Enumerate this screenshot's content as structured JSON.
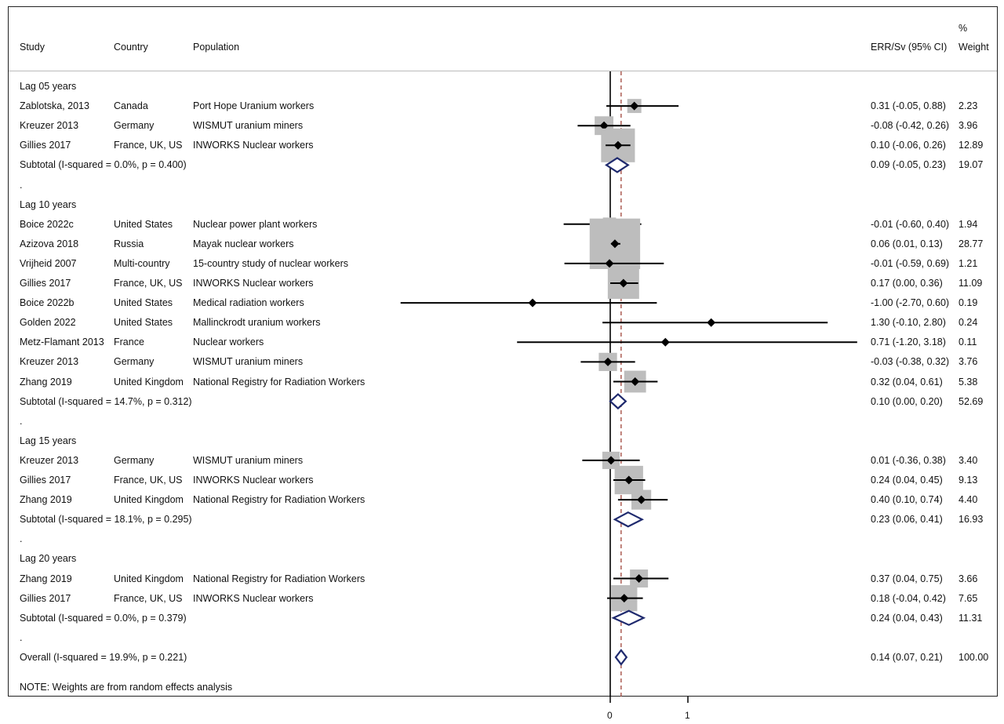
{
  "header": {
    "study": "Study",
    "country": "Country",
    "population": "Population",
    "estimate": "ERR/Sv (95% CI)",
    "weight_pct": "%",
    "weight": "Weight"
  },
  "note": "NOTE: Weights are from random effects analysis",
  "chart_data": {
    "type": "forest",
    "x_axis": {
      "ticks": [
        0,
        1
      ],
      "reference_line": 0,
      "dashed_line_at_overall": 0.14
    },
    "rows": [
      {
        "kind": "group",
        "label": "Lag 05 years"
      },
      {
        "kind": "study",
        "study": "Zablotska, 2013",
        "country": "Canada",
        "population": "Port Hope Uranium workers",
        "est": 0.31,
        "lo": -0.05,
        "hi": 0.88,
        "ci_text": "0.31 (-0.05, 0.88)",
        "weight": 2.23,
        "weight_text": "2.23"
      },
      {
        "kind": "study",
        "study": "Kreuzer 2013",
        "country": "Germany",
        "population": "WISMUT uranium miners",
        "est": -0.08,
        "lo": -0.42,
        "hi": 0.26,
        "ci_text": "-0.08 (-0.42, 0.26)",
        "weight": 3.96,
        "weight_text": "3.96"
      },
      {
        "kind": "study",
        "study": "Gillies 2017",
        "country": "France, UK, US",
        "population": "INWORKS Nuclear workers",
        "est": 0.1,
        "lo": -0.06,
        "hi": 0.26,
        "ci_text": "0.10 (-0.06, 0.26)",
        "weight": 12.89,
        "weight_text": "12.89"
      },
      {
        "kind": "subtotal",
        "study": "Subtotal  (I-squared = 0.0%, p = 0.400)",
        "est": 0.09,
        "lo": -0.05,
        "hi": 0.23,
        "ci_text": "0.09 (-0.05, 0.23)",
        "weight_text": "19.07"
      },
      {
        "kind": "spacer",
        "label": "."
      },
      {
        "kind": "group",
        "label": "Lag 10 years"
      },
      {
        "kind": "study",
        "study": "Boice 2022c",
        "country": "United States",
        "population": "Nuclear power plant workers",
        "est": -0.01,
        "lo": -0.6,
        "hi": 0.4,
        "ci_text": "-0.01 (-0.60, 0.40)",
        "weight": 1.94,
        "weight_text": "1.94"
      },
      {
        "kind": "study",
        "study": "Azizova 2018",
        "country": "Russia",
        "population": "Mayak nuclear workers",
        "est": 0.06,
        "lo": 0.01,
        "hi": 0.13,
        "ci_text": "0.06 (0.01, 0.13)",
        "weight": 28.77,
        "weight_text": "28.77"
      },
      {
        "kind": "study",
        "study": "Vrijheid 2007",
        "country": "Multi-country",
        "population": "15-country study of nuclear workers",
        "est": -0.01,
        "lo": -0.59,
        "hi": 0.69,
        "ci_text": "-0.01 (-0.59, 0.69)",
        "weight": 1.21,
        "weight_text": "1.21"
      },
      {
        "kind": "study",
        "study": "Gillies 2017",
        "country": "France, UK, US",
        "population": "INWORKS Nuclear workers",
        "est": 0.17,
        "lo": 0.0,
        "hi": 0.36,
        "ci_text": "0.17 (0.00, 0.36)",
        "weight": 11.09,
        "weight_text": "11.09"
      },
      {
        "kind": "study",
        "study": "Boice 2022b",
        "country": "United States",
        "population": "Medical radiation workers",
        "est": -1.0,
        "lo": -2.7,
        "hi": 0.6,
        "ci_text": "-1.00 (-2.70, 0.60)",
        "weight": 0.19,
        "weight_text": "0.19"
      },
      {
        "kind": "study",
        "study": "Golden 2022",
        "country": "United States",
        "population": "Mallinckrodt uranium workers",
        "est": 1.3,
        "lo": -0.1,
        "hi": 2.8,
        "ci_text": "1.30 (-0.10, 2.80)",
        "weight": 0.24,
        "weight_text": "0.24"
      },
      {
        "kind": "study",
        "study": "Metz-Flamant 2013",
        "country": "France",
        "population": "Nuclear workers",
        "est": 0.71,
        "lo": -1.2,
        "hi": 3.18,
        "ci_text": "0.71 (-1.20, 3.18)",
        "weight": 0.11,
        "weight_text": "0.11"
      },
      {
        "kind": "study",
        "study": "Kreuzer 2013",
        "country": "Germany",
        "population": "WISMUT uranium miners",
        "est": -0.03,
        "lo": -0.38,
        "hi": 0.32,
        "ci_text": "-0.03 (-0.38, 0.32)",
        "weight": 3.76,
        "weight_text": "3.76"
      },
      {
        "kind": "study",
        "study": "Zhang 2019",
        "country": "United Kingdom",
        "population": "National Registry for Radiation Workers",
        "est": 0.32,
        "lo": 0.04,
        "hi": 0.61,
        "ci_text": "0.32 (0.04, 0.61)",
        "weight": 5.38,
        "weight_text": "5.38"
      },
      {
        "kind": "subtotal",
        "study": "Subtotal  (I-squared = 14.7%, p = 0.312)",
        "est": 0.1,
        "lo": 0.0,
        "hi": 0.2,
        "ci_text": "0.10 (0.00, 0.20)",
        "weight_text": "52.69"
      },
      {
        "kind": "spacer",
        "label": "."
      },
      {
        "kind": "group",
        "label": "Lag 15 years"
      },
      {
        "kind": "study",
        "study": "Kreuzer 2013",
        "country": "Germany",
        "population": "WISMUT uranium miners",
        "est": 0.01,
        "lo": -0.36,
        "hi": 0.38,
        "ci_text": "0.01 (-0.36, 0.38)",
        "weight": 3.4,
        "weight_text": "3.40"
      },
      {
        "kind": "study",
        "study": "Gillies 2017",
        "country": "France, UK, US",
        "population": "INWORKS Nuclear workers",
        "est": 0.24,
        "lo": 0.04,
        "hi": 0.45,
        "ci_text": "0.24 (0.04, 0.45)",
        "weight": 9.13,
        "weight_text": "9.13"
      },
      {
        "kind": "study",
        "study": "Zhang 2019",
        "country": "United Kingdom",
        "population": "National Registry for Radiation Workers",
        "est": 0.4,
        "lo": 0.1,
        "hi": 0.74,
        "ci_text": "0.40 (0.10, 0.74)",
        "weight": 4.4,
        "weight_text": "4.40"
      },
      {
        "kind": "subtotal",
        "study": "Subtotal  (I-squared = 18.1%, p = 0.295)",
        "est": 0.23,
        "lo": 0.06,
        "hi": 0.41,
        "ci_text": "0.23 (0.06, 0.41)",
        "weight_text": "16.93"
      },
      {
        "kind": "spacer",
        "label": "."
      },
      {
        "kind": "group",
        "label": "Lag 20 years"
      },
      {
        "kind": "study",
        "study": "Zhang 2019",
        "country": "United Kingdom",
        "population": "National Registry for Radiation Workers",
        "est": 0.37,
        "lo": 0.04,
        "hi": 0.75,
        "ci_text": "0.37 (0.04, 0.75)",
        "weight": 3.66,
        "weight_text": "3.66"
      },
      {
        "kind": "study",
        "study": "Gillies 2017",
        "country": "France, UK, US",
        "population": "INWORKS Nuclear workers",
        "est": 0.18,
        "lo": -0.04,
        "hi": 0.42,
        "ci_text": "0.18 (-0.04, 0.42)",
        "weight": 7.65,
        "weight_text": "7.65"
      },
      {
        "kind": "subtotal",
        "study": "Subtotal  (I-squared = 0.0%, p = 0.379)",
        "est": 0.24,
        "lo": 0.04,
        "hi": 0.43,
        "ci_text": "0.24 (0.04, 0.43)",
        "weight_text": "11.31"
      },
      {
        "kind": "spacer",
        "label": "."
      },
      {
        "kind": "overall",
        "study": "Overall  (I-squared = 19.9%, p = 0.221)",
        "est": 0.14,
        "lo": 0.07,
        "hi": 0.21,
        "ci_text": "0.14 (0.07, 0.21)",
        "weight_text": "100.00"
      }
    ]
  },
  "colors": {
    "box": "#bdbdbd",
    "point": "#000000",
    "diamond": "#1f2a6e",
    "dashed": "#a0443a",
    "axis": "#000000"
  }
}
